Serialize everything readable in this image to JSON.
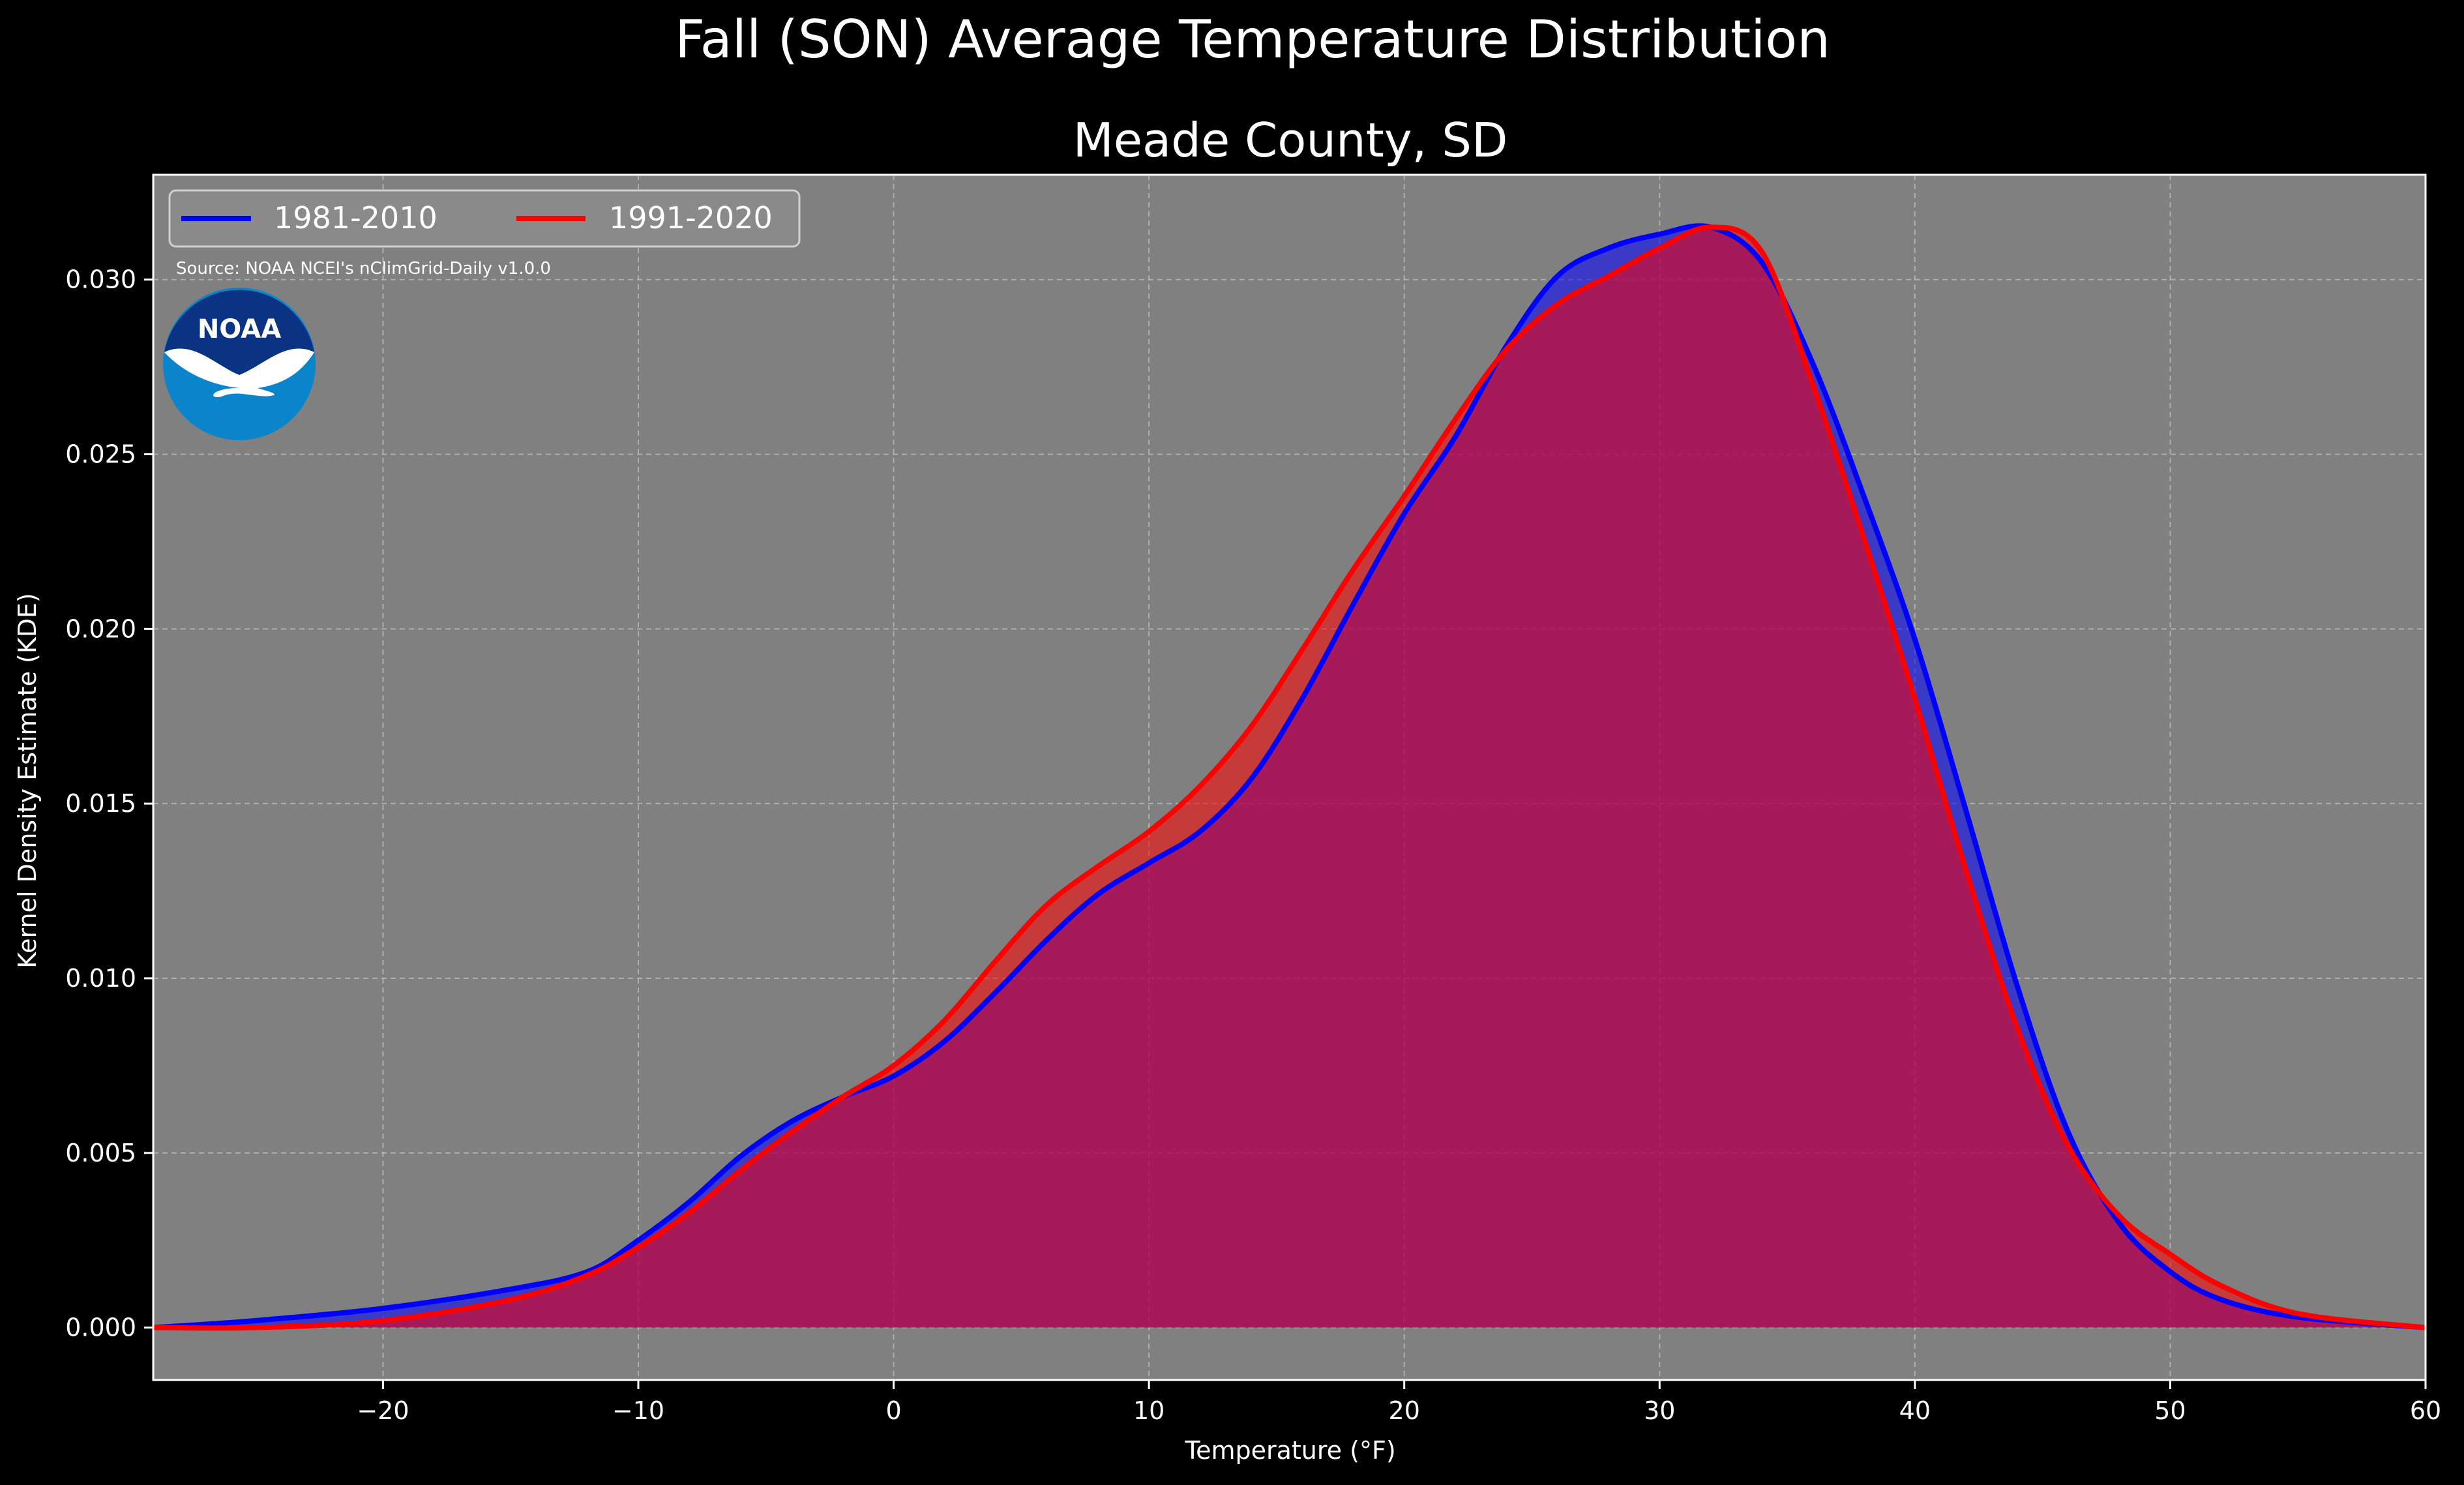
{
  "chart_data": {
    "type": "area",
    "suptitle": "Fall (SON) Average Temperature Distribution",
    "title": "Meade County, SD",
    "xlabel": "Temperature ($^\\circ$F)",
    "xlabel_display": "Temperature (°F)",
    "ylabel": "Kernel Density Estimate (KDE)",
    "xlim": [
      -29,
      60
    ],
    "ylim": [
      -0.0015,
      0.033
    ],
    "x_ticks": [
      -20,
      -10,
      0,
      10,
      20,
      30,
      40,
      50,
      60
    ],
    "x_tick_labels": [
      "−20",
      "−10",
      "0",
      "10",
      "20",
      "30",
      "40",
      "50",
      "60"
    ],
    "y_ticks": [
      0.0,
      0.005,
      0.01,
      0.015,
      0.02,
      0.025,
      0.03
    ],
    "y_tick_labels": [
      "0.000",
      "0.005",
      "0.010",
      "0.015",
      "0.020",
      "0.025",
      "0.030"
    ],
    "grid": true,
    "legend_position": "top-left",
    "source_note": "Source: NOAA NCEI's nClimGrid-Daily v1.0.0",
    "logo_text": "NOAA",
    "series": [
      {
        "name": "1981-2010",
        "color": "#0000ff",
        "points": [
          [
            -29,
            0.0
          ],
          [
            -25,
            0.0002
          ],
          [
            -20,
            0.00055
          ],
          [
            -15,
            0.0011
          ],
          [
            -12,
            0.0016
          ],
          [
            -10,
            0.0025
          ],
          [
            -8,
            0.0036
          ],
          [
            -6,
            0.0049
          ],
          [
            -4,
            0.0059
          ],
          [
            -2,
            0.0066
          ],
          [
            0,
            0.0072
          ],
          [
            2,
            0.0082
          ],
          [
            4,
            0.0096
          ],
          [
            6,
            0.0111
          ],
          [
            8,
            0.0124
          ],
          [
            10,
            0.0133
          ],
          [
            12,
            0.0142
          ],
          [
            14,
            0.0157
          ],
          [
            16,
            0.018
          ],
          [
            18,
            0.0207
          ],
          [
            20,
            0.0233
          ],
          [
            22,
            0.0255
          ],
          [
            24,
            0.0281
          ],
          [
            26,
            0.0301
          ],
          [
            28,
            0.0309
          ],
          [
            30,
            0.0313
          ],
          [
            32,
            0.0315
          ],
          [
            34,
            0.0305
          ],
          [
            36,
            0.0276
          ],
          [
            38,
            0.0238
          ],
          [
            40,
            0.0197
          ],
          [
            42,
            0.0148
          ],
          [
            44,
            0.0098
          ],
          [
            46,
            0.0056
          ],
          [
            48,
            0.003
          ],
          [
            50,
            0.0016
          ],
          [
            52,
            0.0008
          ],
          [
            55,
            0.0003
          ],
          [
            60,
            0.0
          ]
        ]
      },
      {
        "name": "1991-2020",
        "color": "#ff0000",
        "points": [
          [
            -29,
            0.0
          ],
          [
            -25,
            0.0
          ],
          [
            -20,
            0.0002
          ],
          [
            -15,
            0.0008
          ],
          [
            -12,
            0.0015
          ],
          [
            -10,
            0.0023
          ],
          [
            -8,
            0.0033
          ],
          [
            -6,
            0.0045
          ],
          [
            -4,
            0.0056
          ],
          [
            -2,
            0.0066
          ],
          [
            0,
            0.0075
          ],
          [
            2,
            0.0088
          ],
          [
            4,
            0.0105
          ],
          [
            6,
            0.0121
          ],
          [
            8,
            0.0132
          ],
          [
            10,
            0.0142
          ],
          [
            12,
            0.0155
          ],
          [
            14,
            0.0172
          ],
          [
            16,
            0.0194
          ],
          [
            18,
            0.0217
          ],
          [
            20,
            0.0238
          ],
          [
            22,
            0.026
          ],
          [
            24,
            0.028
          ],
          [
            26,
            0.0293
          ],
          [
            28,
            0.0301
          ],
          [
            30,
            0.0309
          ],
          [
            32,
            0.0315
          ],
          [
            34,
            0.0308
          ],
          [
            36,
            0.027
          ],
          [
            38,
            0.0226
          ],
          [
            40,
            0.018
          ],
          [
            42,
            0.0131
          ],
          [
            44,
            0.0086
          ],
          [
            46,
            0.0052
          ],
          [
            48,
            0.0032
          ],
          [
            50,
            0.0021
          ],
          [
            52,
            0.0012
          ],
          [
            55,
            0.0004
          ],
          [
            60,
            0.0
          ]
        ]
      }
    ]
  },
  "colors": {
    "background": "#000000",
    "plot_background": "#808080",
    "grid": "#bdbdbd",
    "text": "#ffffff",
    "noaa_dark": "#0a3383",
    "noaa_light": "#0a85cc"
  }
}
